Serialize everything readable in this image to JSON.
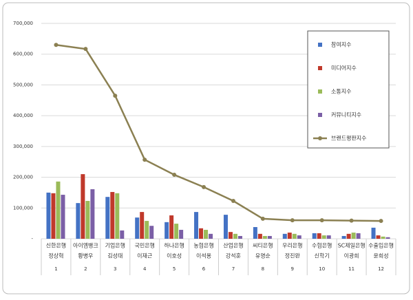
{
  "chart_data": {
    "type": "combo",
    "categories": [
      [
        "신한은행",
        "정상혁"
      ],
      [
        "아이엠뱅크",
        "황병우"
      ],
      [
        "기업은행",
        "김성태"
      ],
      [
        "국민은행",
        "이재근"
      ],
      [
        "하나은행",
        "이호성"
      ],
      [
        "농협은행",
        "이석용"
      ],
      [
        "산업은행",
        "강석훈"
      ],
      [
        "씨티은행",
        "유명순"
      ],
      [
        "우리은행",
        "정진완"
      ],
      [
        "수협은행",
        "신학기"
      ],
      [
        "SC제일은행",
        "이광희"
      ],
      [
        "수출입은행",
        "윤희성"
      ]
    ],
    "category_numbers": [
      1,
      2,
      3,
      4,
      5,
      6,
      7,
      8,
      9,
      10,
      11,
      12
    ],
    "series": [
      {
        "name": "참여지수",
        "type": "bar",
        "color": "#4472c4",
        "values": [
          150000,
          116000,
          136000,
          69000,
          54000,
          87000,
          78000,
          38000,
          16000,
          18000,
          9000,
          36000
        ]
      },
      {
        "name": "미디어지수",
        "type": "bar",
        "color": "#c0392b",
        "values": [
          148000,
          210000,
          152000,
          87000,
          76000,
          34000,
          22000,
          16000,
          20000,
          18000,
          16000,
          11000
        ]
      },
      {
        "name": "소통지수",
        "type": "bar",
        "color": "#9bbb59",
        "values": [
          186000,
          123000,
          148000,
          58000,
          49000,
          29000,
          16000,
          9000,
          16000,
          11000,
          20000,
          7000
        ]
      },
      {
        "name": "커뮤니티지수",
        "type": "bar",
        "color": "#7b5fa6",
        "values": [
          143000,
          161000,
          27000,
          42000,
          29000,
          16000,
          9000,
          9000,
          11000,
          11000,
          18000,
          5000
        ]
      },
      {
        "name": "브랜드평판지수",
        "type": "line",
        "color": "#8b8052",
        "values": [
          630000,
          617000,
          465000,
          257000,
          208000,
          168000,
          123000,
          65000,
          60000,
          60000,
          59000,
          58000
        ]
      }
    ],
    "ylim": [
      0,
      700000
    ],
    "yticks": [
      {
        "value": 0,
        "label": "-"
      },
      {
        "value": 100000,
        "label": "100,000"
      },
      {
        "value": 200000,
        "label": "200,000"
      },
      {
        "value": 300000,
        "label": "300,000"
      },
      {
        "value": 400000,
        "label": "400,000"
      },
      {
        "value": 500000,
        "label": "500,000"
      },
      {
        "value": 600000,
        "label": "600,000"
      },
      {
        "value": 700000,
        "label": "700,000"
      }
    ],
    "grid": true
  }
}
